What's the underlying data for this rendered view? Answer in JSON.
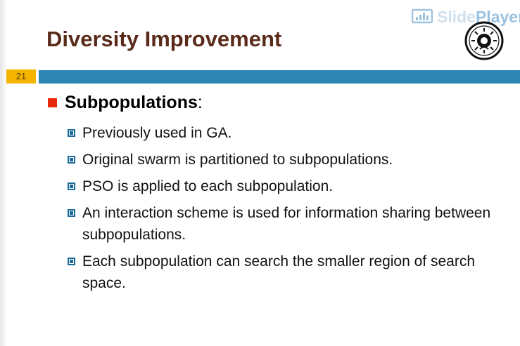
{
  "slide": {
    "title": "Diversity Improvement",
    "number": "21"
  },
  "watermark": {
    "slide": "Slide",
    "player": "Player",
    "icon": "presentation-chart-icon"
  },
  "logo": {
    "icon": "university-seal-icon"
  },
  "content": {
    "heading": "Subpopulations",
    "heading_suffix": ":",
    "items": [
      "Previously used in GA.",
      "Original swarm is partitioned to subpopulations.",
      "PSO is applied to each subpopulation.",
      "An interaction scheme is used for information sharing between subpopulations.",
      "Each subpopulation can search the smaller region of search space."
    ]
  },
  "colors": {
    "title": "#5a2b1a",
    "bar": "#2e86b4",
    "slide_number_bg": "#f4b400",
    "bullet_l1": "#e8290b",
    "bullet_l2": "#1a6b9a"
  }
}
